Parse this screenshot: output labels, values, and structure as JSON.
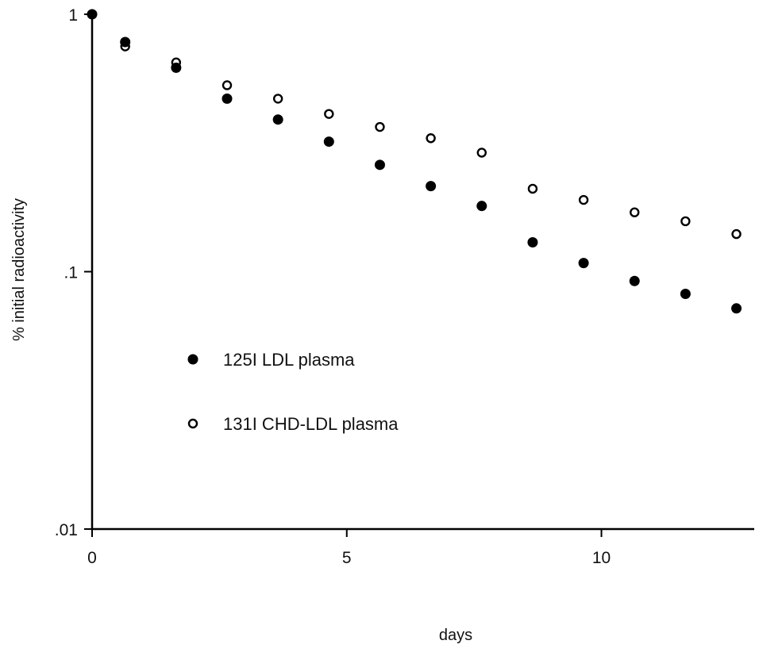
{
  "chart_data": {
    "type": "scatter",
    "title": "",
    "xlabel": "days",
    "ylabel": "% initial radioactivity",
    "xlim": [
      0,
      13
    ],
    "ylim": [
      0.01,
      1
    ],
    "y_scale": "log",
    "grid": false,
    "legend_position": "center-left",
    "x_ticks": [
      {
        "value": 0,
        "label": "0"
      },
      {
        "value": 5,
        "label": "5"
      },
      {
        "value": 10,
        "label": "10"
      }
    ],
    "y_ticks": [
      {
        "value": 1,
        "label": "1"
      },
      {
        "value": 0.1,
        "label": ".1"
      },
      {
        "value": 0.01,
        "label": ".01"
      }
    ],
    "series": [
      {
        "name": "125I LDL plasma",
        "marker": "filled-circle",
        "color": "#000000",
        "x": [
          0,
          0.65,
          1.65,
          2.65,
          3.65,
          4.65,
          5.65,
          6.65,
          7.65,
          8.65,
          9.65,
          10.65,
          11.65,
          12.65
        ],
        "y": [
          1.0,
          0.78,
          0.62,
          0.47,
          0.39,
          0.32,
          0.26,
          0.215,
          0.18,
          0.13,
          0.108,
          0.092,
          0.082,
          0.072
        ]
      },
      {
        "name": "131I CHD-LDL plasma",
        "marker": "open-circle",
        "color": "#000000",
        "x": [
          0,
          0.65,
          1.65,
          2.65,
          3.65,
          4.65,
          5.65,
          6.65,
          7.65,
          8.65,
          9.65,
          10.65,
          11.65,
          12.65
        ],
        "y": [
          1.0,
          0.75,
          0.65,
          0.53,
          0.47,
          0.41,
          0.365,
          0.33,
          0.29,
          0.21,
          0.19,
          0.17,
          0.157,
          0.14
        ]
      }
    ]
  }
}
